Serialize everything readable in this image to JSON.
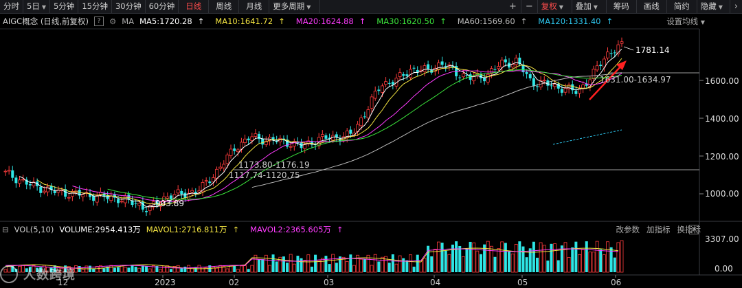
{
  "toolbar": {
    "items": [
      "分时",
      "5日",
      "5分钟",
      "15分钟",
      "30分钟",
      "60分钟",
      "日线",
      "周线",
      "月线",
      "更多周期"
    ],
    "active_index": 6,
    "right_items": [
      "复权",
      "叠加",
      "筹码",
      "画线",
      "简约",
      "隐藏"
    ],
    "plus_icon": "plus-icon",
    "minus_icon": "minus-icon"
  },
  "info": {
    "title": "AIGC概念 (日线,前复权)",
    "help": "?",
    "ma_label": "MA",
    "ma": [
      {
        "text": "MA5:1720.28",
        "color": "#ffffff"
      },
      {
        "text": "MA10:1641.72",
        "color": "#f5e642"
      },
      {
        "text": "MA20:1624.88",
        "color": "#ff3cff"
      },
      {
        "text": "MA30:1620.50",
        "color": "#3ce63c"
      },
      {
        "text": "MA60:1569.60",
        "color": "#bcbcbc"
      },
      {
        "text": "MA120:1331.40",
        "color": "#2ec8f0"
      }
    ],
    "arrow": "↑",
    "setting": "设置均线"
  },
  "price_axis": {
    "ticks": [
      "1600.00",
      "1400.00",
      "1200.00",
      "1000.00"
    ]
  },
  "annotations": {
    "high": "1781.14",
    "low": "903.89",
    "gap1": "1173.80-1176.19",
    "gap2": "1117.74-1120.75",
    "gap3": "1631.00-1634.97"
  },
  "vol": {
    "label": "VOL(5,10)",
    "volume": "VOLUME:2954.413万",
    "mavol1": "MAVOL1:2716.811万",
    "mavol2": "MAVOL2:2365.605万",
    "arrow": "↑",
    "buttons": [
      "改参数",
      "加指标",
      "换指标"
    ],
    "axis": [
      "3307.00",
      "0.00"
    ]
  },
  "date_axis": [
    "12",
    "2023",
    "02",
    "03",
    "04",
    "05",
    "06"
  ],
  "watermark": "人数跨境",
  "colors": {
    "up": "#ff3c3c",
    "down": "#2ee6e6",
    "accent": "#ff4c4c"
  }
}
